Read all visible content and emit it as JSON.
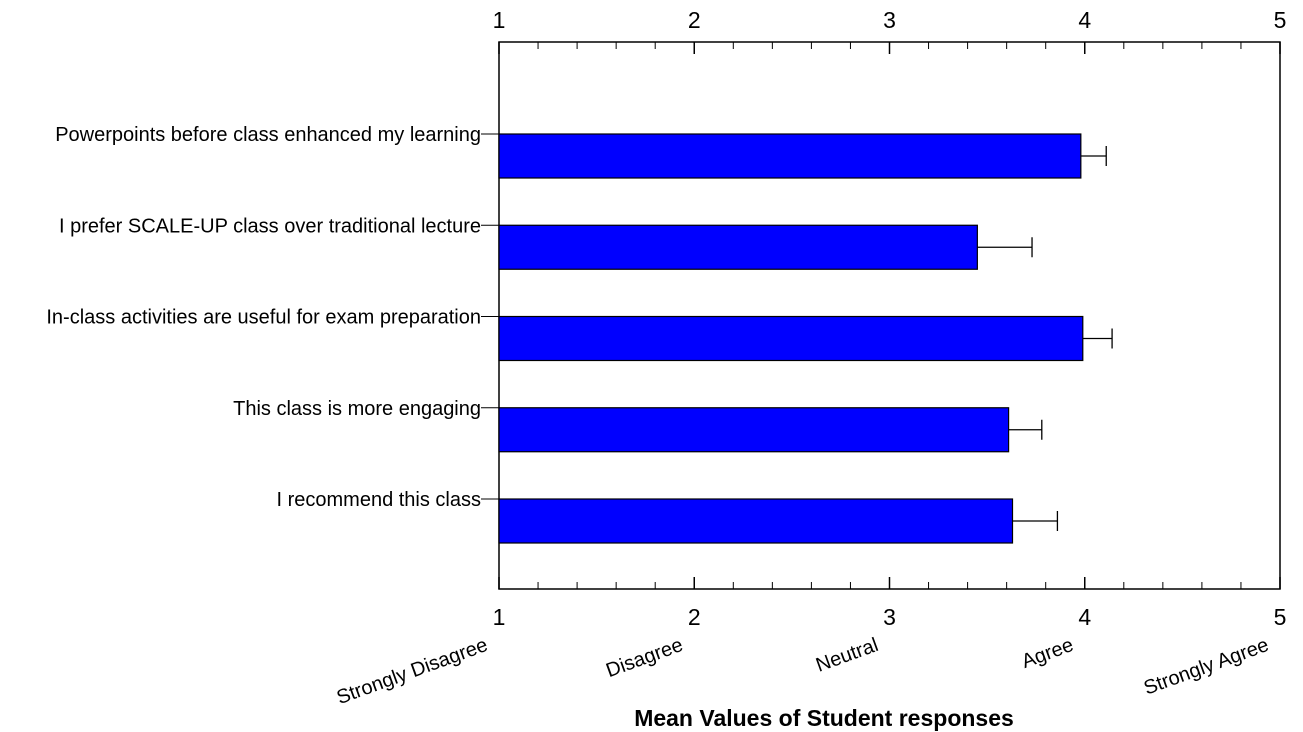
{
  "chart_data": {
    "type": "hbar",
    "categories": [
      "Powerpoints before class enhanced my learning",
      "I prefer SCALE-UP class over traditional lecture",
      "In-class activities are useful for exam preparation",
      "This class is more engaging",
      "I recommend this class"
    ],
    "values": [
      3.98,
      3.45,
      3.99,
      3.61,
      3.63
    ],
    "errors": [
      0.13,
      0.28,
      0.15,
      0.17,
      0.23
    ],
    "color": "#0000ff",
    "xlim": [
      1,
      5
    ],
    "xticks": [
      1,
      2,
      3,
      4,
      5
    ],
    "minor_xticks": [
      1.2,
      1.4,
      1.6,
      1.8,
      2.2,
      2.4,
      2.6,
      2.8,
      3.2,
      3.4,
      3.6,
      3.8,
      4.2,
      4.4,
      4.6,
      4.8
    ],
    "scale_labels": [
      "Strongly Disagree",
      "Disagree",
      "Neutral",
      "Agree",
      "Strongly Agree"
    ],
    "x_label": "Mean Values of Student responses"
  }
}
